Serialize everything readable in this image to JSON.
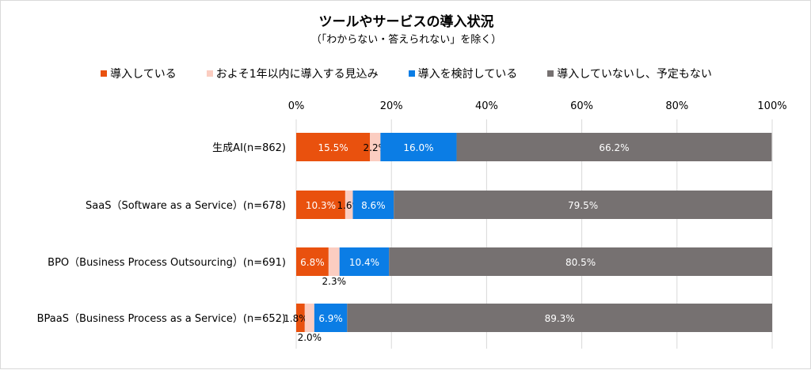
{
  "chart_data": {
    "type": "bar",
    "orientation": "horizontal",
    "stacked": true,
    "title": "ツールやサービスの導入状況",
    "subtitle": "（「わからない・答えられない」を除く）",
    "categories": [
      "生成AI(n=862)",
      "SaaS（Software as a Service）(n=678)",
      "BPO（Business Process Outsourcing）(n=691)",
      "BPaaS（Business Process as a Service）(n=652)"
    ],
    "series": [
      {
        "name": "導入している",
        "color": "#E9510E",
        "values": [
          15.5,
          10.3,
          6.8,
          1.8
        ]
      },
      {
        "name": "およそ1年以内に導入する見込み",
        "color": "#FBCDC1",
        "values": [
          2.2,
          1.6,
          2.3,
          2.0
        ]
      },
      {
        "name": "導入を検討している",
        "color": "#0B7DE5",
        "values": [
          16.0,
          8.6,
          10.4,
          6.9
        ]
      },
      {
        "name": "導入していないし、予定もない",
        "color": "#767171",
        "values": [
          66.2,
          79.5,
          80.5,
          89.3
        ]
      }
    ],
    "xlim": [
      0,
      100
    ],
    "xticks": [
      "0%",
      "20%",
      "40%",
      "60%",
      "80%",
      "100%"
    ],
    "grid": true,
    "legend_position": "top",
    "value_suffix": "%"
  }
}
